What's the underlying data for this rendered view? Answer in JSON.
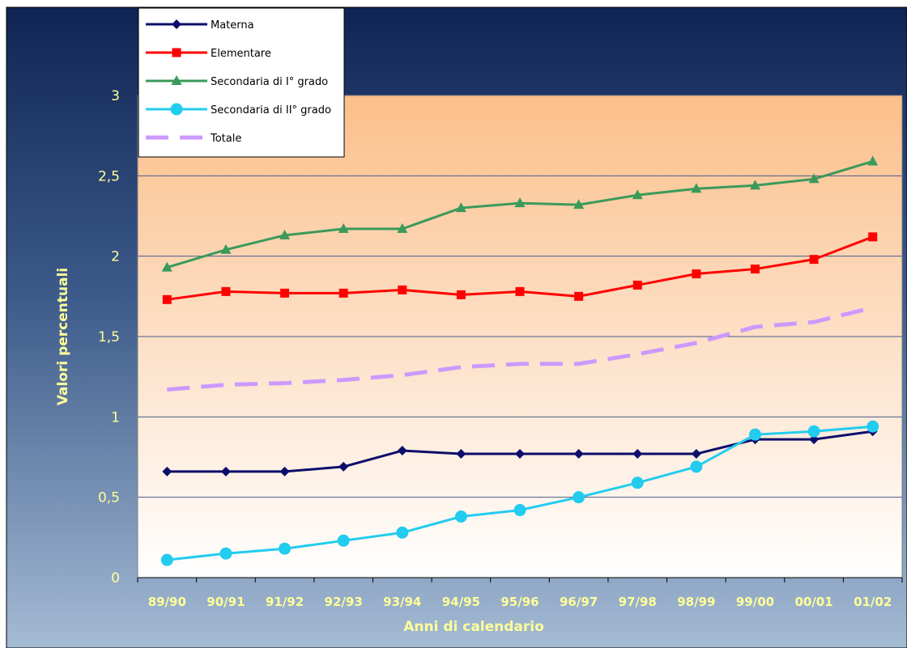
{
  "chart_data": {
    "type": "line",
    "xlabel": "Anni di calendario",
    "ylabel": "Valori percentuali",
    "categories": [
      "89/90",
      "90/91",
      "91/92",
      "92/93",
      "93/94",
      "94/95",
      "95/96",
      "96/97",
      "97/98",
      "98/99",
      "99/00",
      "00/01",
      "01/02"
    ],
    "ylim": [
      0,
      3
    ],
    "yticks": [
      0,
      0.5,
      1,
      1.5,
      2,
      2.5,
      3
    ],
    "ytick_labels": [
      "0",
      "0,5",
      "1",
      "1,5",
      "2",
      "2,5",
      "3"
    ],
    "grid": true,
    "legend_position": "top-left",
    "series": [
      {
        "name": "Materna",
        "color": "#0d0d6b",
        "marker": "diamond",
        "dash": false,
        "values": [
          0.66,
          0.66,
          0.66,
          0.69,
          0.79,
          0.77,
          0.77,
          0.77,
          0.77,
          0.77,
          0.86,
          0.86,
          0.91
        ]
      },
      {
        "name": "Elementare",
        "color": "#ff0000",
        "marker": "square",
        "dash": false,
        "values": [
          1.73,
          1.78,
          1.77,
          1.77,
          1.79,
          1.76,
          1.78,
          1.75,
          1.82,
          1.89,
          1.92,
          1.98,
          2.12
        ]
      },
      {
        "name": "Secondaria di I° grado",
        "color": "#3a9a5a",
        "marker": "triangle",
        "dash": false,
        "values": [
          1.93,
          2.04,
          2.13,
          2.17,
          2.17,
          2.3,
          2.33,
          2.32,
          2.38,
          2.42,
          2.44,
          2.48,
          2.59
        ]
      },
      {
        "name": "Secondaria di II° grado",
        "color": "#22ccee",
        "marker": "circle",
        "dash": false,
        "values": [
          0.11,
          0.15,
          0.18,
          0.23,
          0.28,
          0.38,
          0.42,
          0.5,
          0.59,
          0.69,
          0.89,
          0.91,
          0.94
        ]
      },
      {
        "name": "Totale",
        "color": "#cc99ff",
        "marker": "none",
        "dash": true,
        "values": [
          1.17,
          1.2,
          1.21,
          1.23,
          1.26,
          1.31,
          1.33,
          1.33,
          1.39,
          1.46,
          1.56,
          1.59,
          1.68
        ]
      }
    ]
  },
  "colors": {
    "axis_text": "#ffff99",
    "gridline": "#4b5a88",
    "plot_top": "#fbc08c",
    "plot_bottom": "#ffffff",
    "bg_top": "#0f2454",
    "bg_bottom": "#9cb4d0"
  }
}
